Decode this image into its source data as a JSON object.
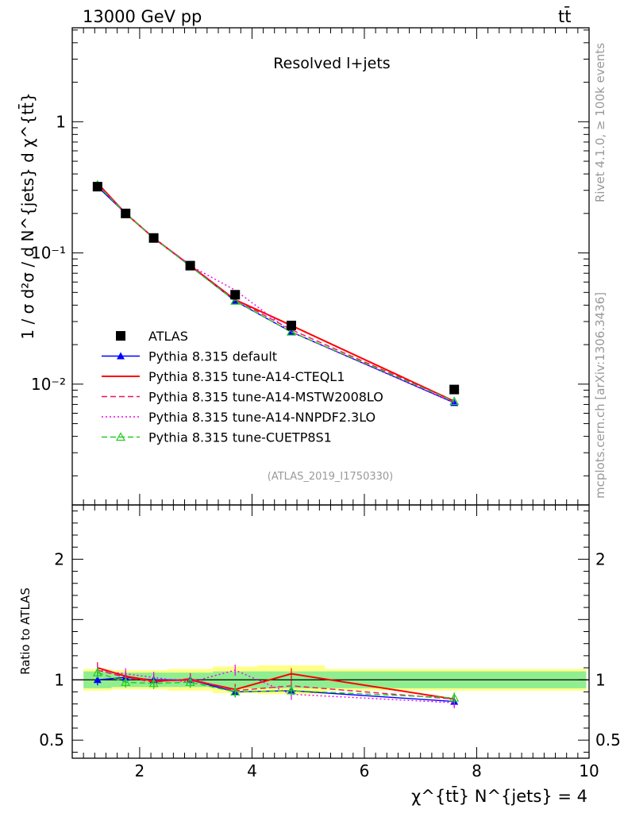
{
  "header": {
    "left": "13000 GeV pp",
    "right": "tt̄"
  },
  "annotation": "Resolved l+jets",
  "side_text_top": "Rivet 4.1.0, ≥ 100k events",
  "side_text_bottom": "mcplots.cern.ch [arXiv:1306.3436]",
  "analysis_id": "(ATLAS_2019_I1750330)",
  "axes": {
    "main_ylabel": "1 / σ d²σ / d N^{jets} d χ^{tt̄}",
    "main_ytick_labels": [
      "1",
      "10⁻¹",
      "10⁻²"
    ],
    "ratio_ylabel": "Ratio to ATLAS",
    "ratio_ytick_labels": [
      "2",
      "1",
      "0.5"
    ],
    "xlabel": "χ^{tt̄} N^{jets} = 4",
    "xtick_labels": [
      "2",
      "4",
      "6",
      "8",
      "10"
    ]
  },
  "chart_data": [
    {
      "type": "line",
      "panel": "main",
      "yscale": "log",
      "xlim": [
        0.8,
        10.0
      ],
      "ylim": [
        0.0012,
        5.2
      ],
      "x": [
        1.25,
        1.75,
        2.25,
        2.9,
        3.7,
        4.7,
        7.6
      ],
      "series": [
        {
          "name": "ATLAS",
          "color": "#000000",
          "marker": "square",
          "values": [
            0.32,
            0.2,
            0.13,
            0.08,
            0.048,
            0.028,
            0.0091
          ]
        },
        {
          "name": "Pythia 8.315 default",
          "color": "#0000ff",
          "marker": "triangle",
          "values": [
            0.32,
            0.2,
            0.13,
            0.08,
            0.043,
            0.025,
            0.0072
          ]
        },
        {
          "name": "Pythia 8.315 tune-A14-CTEQL1",
          "color": "#ff0000",
          "dash": "solid",
          "values": [
            0.34,
            0.2,
            0.13,
            0.08,
            0.044,
            0.028,
            0.0074
          ]
        },
        {
          "name": "Pythia 8.315 tune-A14-MSTW2008LO",
          "color": "#ee1166",
          "dash": "dashed",
          "values": [
            0.33,
            0.2,
            0.13,
            0.081,
            0.044,
            0.026,
            0.0074
          ]
        },
        {
          "name": "Pythia 8.315 tune-A14-NNPDF2.3LO",
          "color": "#ee00ee",
          "dash": "dotted",
          "values": [
            0.33,
            0.2,
            0.13,
            0.08,
            0.052,
            0.025,
            0.0072
          ]
        },
        {
          "name": "Pythia 8.315 tune-CUETP8S1",
          "color": "#22cc22",
          "dash": "dashed",
          "marker": "open-triangle",
          "values": [
            0.33,
            0.2,
            0.13,
            0.079,
            0.043,
            0.025,
            0.0074
          ]
        }
      ]
    },
    {
      "type": "line",
      "panel": "ratio",
      "ylim": [
        0.35,
        2.45
      ],
      "x": [
        1.25,
        1.75,
        2.25,
        2.9,
        3.7,
        4.7,
        7.6
      ],
      "band_edges": [
        1.0,
        1.5,
        2.0,
        2.5,
        3.3,
        4.1,
        5.3,
        9.95
      ],
      "band_inner": [
        0.07,
        0.06,
        0.06,
        0.06,
        0.07,
        0.07,
        0.07
      ],
      "band_outer": [
        0.09,
        0.08,
        0.08,
        0.09,
        0.11,
        0.12,
        0.09
      ],
      "reference": 1.0,
      "series": [
        {
          "name": "Pythia 8.315 default",
          "values": [
            1.0,
            1.02,
            1.0,
            1.0,
            0.9,
            0.91,
            0.82
          ]
        },
        {
          "name": "Pythia 8.315 tune-A14-CTEQL1",
          "values": [
            1.1,
            1.03,
            0.99,
            1.0,
            0.92,
            1.05,
            0.84
          ]
        },
        {
          "name": "Pythia 8.315 tune-A14-MSTW2008LO",
          "values": [
            1.08,
            1.02,
            0.98,
            1.01,
            0.91,
            0.95,
            0.84
          ]
        },
        {
          "name": "Pythia 8.315 tune-A14-NNPDF2.3LO",
          "values": [
            1.08,
            1.05,
            1.02,
            0.98,
            1.08,
            0.88,
            0.81
          ]
        },
        {
          "name": "Pythia 8.315 tune-CUETP8S1",
          "values": [
            1.06,
            0.98,
            0.97,
            0.98,
            0.9,
            0.91,
            0.85
          ]
        }
      ]
    }
  ]
}
